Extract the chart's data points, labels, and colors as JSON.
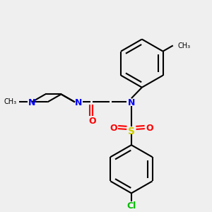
{
  "bg_color": "#efefef",
  "atom_colors": {
    "N": "#0000ff",
    "O": "#ff0000",
    "S": "#cccc00",
    "Cl": "#00bb00",
    "C": "#000000"
  },
  "bond_color": "#000000",
  "bond_width": 1.5,
  "figsize": [
    3.0,
    3.0
  ],
  "dpi": 100
}
